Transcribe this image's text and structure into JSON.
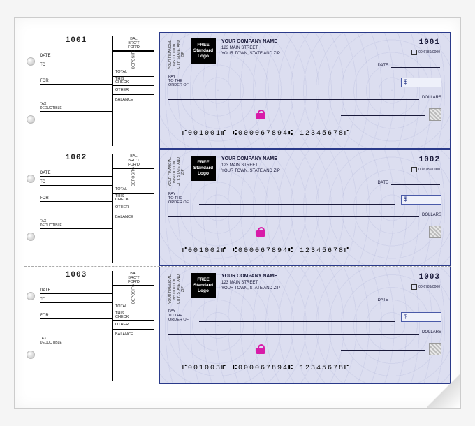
{
  "checks": [
    {
      "number": "1001",
      "micr": "⑈001001⑈  ⑆000067894⑆  12345678⑈"
    },
    {
      "number": "1002",
      "micr": "⑈001002⑈  ⑆000067894⑆  12345678⑈"
    },
    {
      "number": "1003",
      "micr": "⑈001003⑈  ⑆000067894⑆  12345678⑈"
    }
  ],
  "stub": {
    "bal_fwd": "BAL\nBRO'T\nFOR'D",
    "deposits": "DEPOSITS",
    "date": "DATE",
    "to": "TO",
    "for": "FOR",
    "tax": "TAX\nDEDUCTIBLE",
    "total": "TOTAL",
    "this_check": "THIS\nCHECK",
    "other": "OTHER",
    "balance": "BALANCE"
  },
  "check": {
    "bank_line1": "YOUR FINANCIAL INSTITUTION",
    "bank_line2": "CITY, STATE, AND ZIP",
    "logo_l1": "FREE",
    "logo_l2": "Standard",
    "logo_l3": "Logo",
    "company_name": "YOUR COMPANY NAME",
    "company_addr1": "123 MAIN STREET",
    "company_addr2": "YOUR TOWN, STATE AND ZIP",
    "routing": "00-6789/0000",
    "date_label": "DATE",
    "pay_label": "PAY\nTO THE\nORDER OF",
    "dollar_sign": "$",
    "dollars_label": "DOLLARS",
    "bg_color": "#dcdef0",
    "border_color": "#2a3a8a",
    "lock_color": "#d81ba8"
  }
}
